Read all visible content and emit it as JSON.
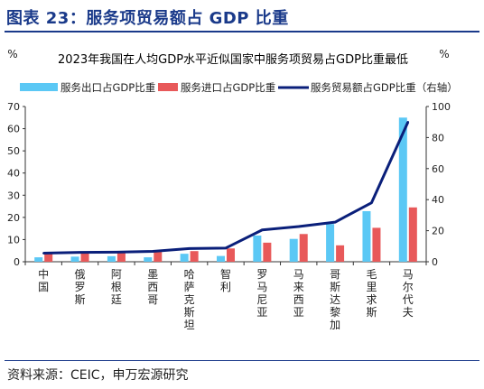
{
  "figure": {
    "heading": "图表 23：服务项贸易额占 GDP 比重",
    "source": "资料来源：CEIC，申万宏源研究"
  },
  "chart_data": {
    "type": "bar",
    "title": "2023年我国在人均GDP水平近似国家中服务项贸易占GDP比重最低",
    "left_unit": "%",
    "right_unit": "%",
    "categories": [
      "中国",
      "俄罗斯",
      "阿根廷",
      "墨西哥",
      "哈萨克斯坦",
      "智利",
      "罗马尼亚",
      "马来西亚",
      "哥斯达黎加",
      "毛里求斯",
      "马尔代夫"
    ],
    "y_left": {
      "min": 0,
      "max": 70,
      "ticks": [
        0,
        10,
        20,
        30,
        40,
        50,
        60,
        70
      ]
    },
    "y_right": {
      "min": 0,
      "max": 100,
      "ticks": [
        0,
        20,
        40,
        60,
        80,
        100
      ]
    },
    "series": [
      {
        "name": "服务出口占GDP比重",
        "type": "bar",
        "axis": "left",
        "color": "#5bc8f5",
        "values": [
          2.0,
          2.3,
          2.5,
          2.0,
          3.6,
          2.6,
          11.8,
          10.3,
          17.0,
          22.8,
          65.0
        ]
      },
      {
        "name": "服务进口占GDP比重",
        "type": "bar",
        "axis": "left",
        "color": "#e8595a",
        "values": [
          3.5,
          3.8,
          4.0,
          4.5,
          4.8,
          6.0,
          8.6,
          12.5,
          7.4,
          15.3,
          24.5
        ]
      },
      {
        "name": "服务贸易额占GDP比重（右轴）",
        "type": "line",
        "axis": "right",
        "color": "#0a1f7a",
        "values": [
          5.5,
          6.0,
          6.2,
          6.7,
          8.5,
          8.8,
          20.5,
          22.7,
          25.5,
          38.0,
          90.0
        ]
      }
    ],
    "legend_position": "top",
    "grid": false
  }
}
